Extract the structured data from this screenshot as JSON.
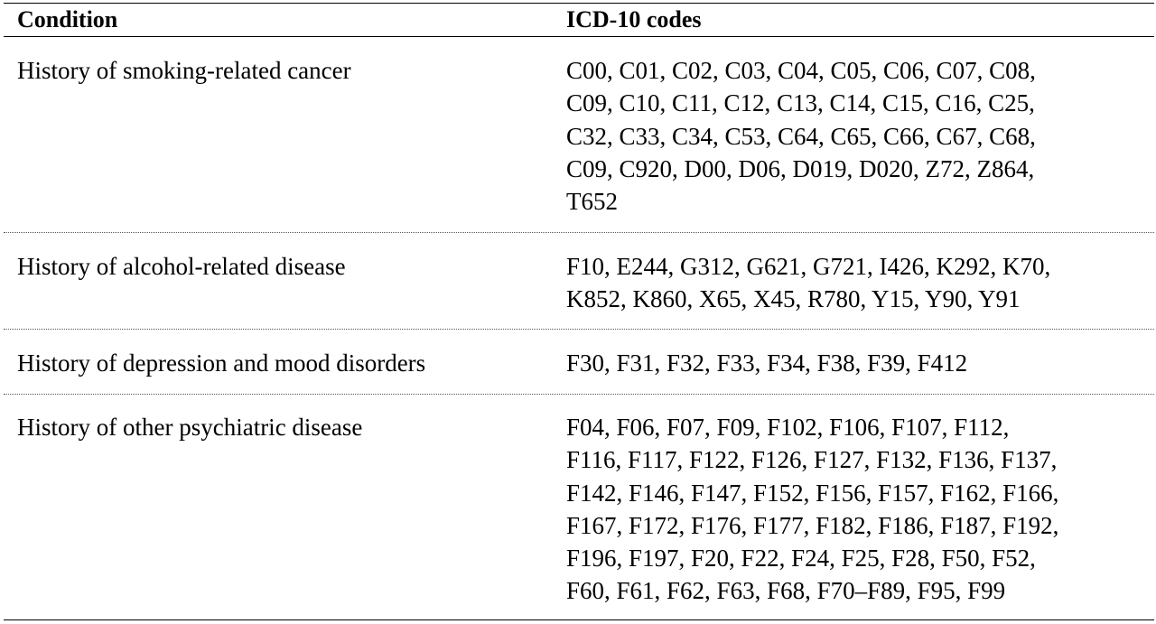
{
  "table": {
    "headers": {
      "condition": "Condition",
      "codes": "ICD-10 codes"
    },
    "rows": [
      {
        "condition": "History of smoking-related cancer",
        "code_lines": [
          "C00, C01, C02, C03, C04, C05, C06, C07, C08,",
          "C09, C10, C11, C12, C13, C14, C15, C16, C25,",
          "C32, C33, C34, C53, C64, C65, C66, C67, C68,",
          "C09, C920, D00, D06, D019, D020, Z72, Z864,",
          "T652"
        ]
      },
      {
        "condition": "History of alcohol-related disease",
        "code_lines": [
          "F10, E244, G312, G621, G721, I426, K292, K70,",
          "K852, K860, X65, X45, R780, Y15, Y90, Y91"
        ]
      },
      {
        "condition": "History of depression and mood disorders",
        "code_lines": [
          "F30, F31, F32, F33, F34, F38, F39, F412"
        ]
      },
      {
        "condition": "History of other psychiatric disease",
        "code_lines": [
          "F04, F06, F07, F09, F102, F106, F107, F112,",
          "F116, F117, F122, F126, F127, F132, F136, F137,",
          "F142, F146, F147, F152, F156, F157, F162, F166,",
          "F167, F172, F176, F177, F182, F186, F187, F192,",
          "F196, F197, F20, F22, F24, F25, F28, F50, F52,",
          "F60, F61, F62, F63, F68, F70–F89, F95, F99"
        ]
      }
    ]
  }
}
